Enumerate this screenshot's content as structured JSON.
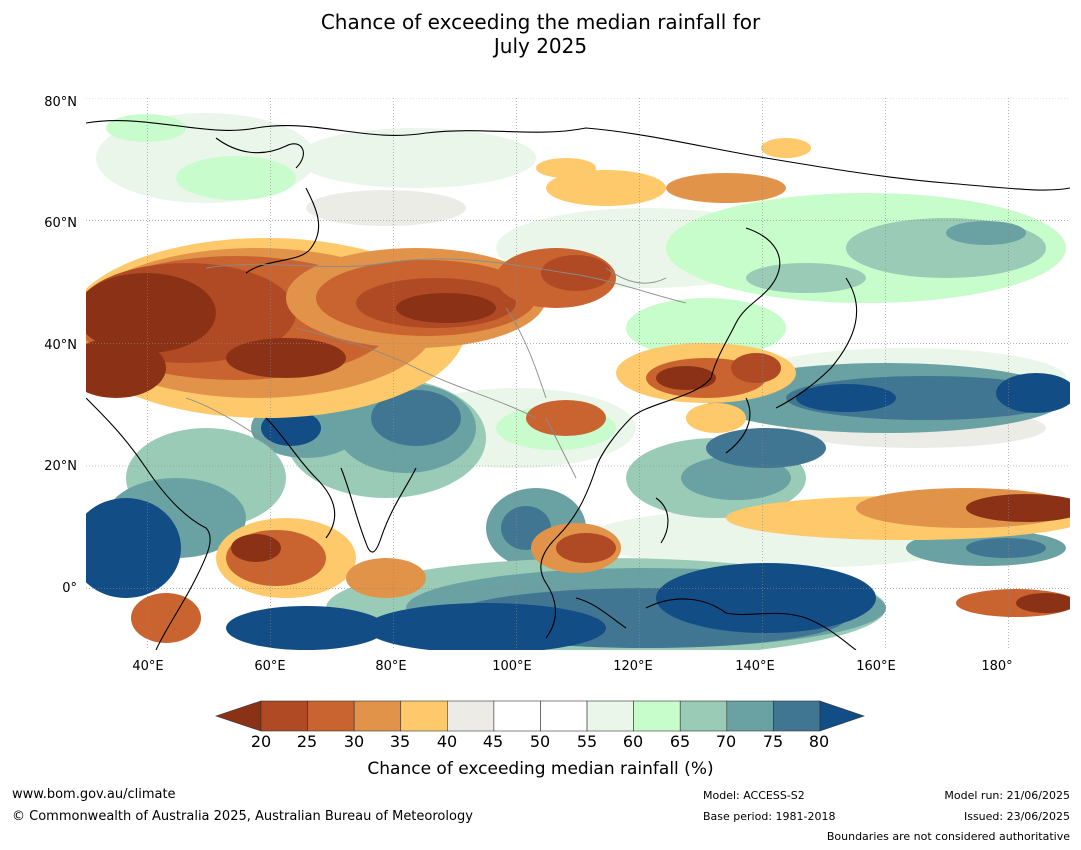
{
  "title": {
    "line1": "Chance of exceeding the median rainfall for",
    "line2": "July 2025"
  },
  "map": {
    "lat_labels": [
      "80°N",
      "60°N",
      "40°N",
      "20°N",
      "0°"
    ],
    "lon_labels": [
      "40°E",
      "60°E",
      "80°E",
      "100°E",
      "120°E",
      "140°E",
      "160°E",
      "180°"
    ],
    "lon_range": [
      30,
      190
    ],
    "lat_range": [
      -10,
      80
    ]
  },
  "colorbar": {
    "ticks": [
      "20",
      "25",
      "30",
      "35",
      "40",
      "45",
      "50",
      "55",
      "60",
      "65",
      "70",
      "75",
      "80"
    ],
    "colors": [
      "#8b3216",
      "#b04a24",
      "#c96430",
      "#e2934a",
      "#fdc96a",
      "#ecebe6",
      "#ffffff",
      "#ffffff",
      "#e9f6e9",
      "#c7fccb",
      "#99cbb6",
      "#6aa2a4",
      "#417693",
      "#134d86"
    ],
    "label": "Chance of exceeding median rainfall (%)"
  },
  "footer": {
    "url": "www.bom.gov.au/climate",
    "copyright": "© Commonwealth of Australia 2025, Australian Bureau of Meteorology",
    "model": "Model: ACCESS-S2",
    "base_period": "Base period: 1981-2018",
    "model_run": "Model run: 21/06/2025",
    "issued": "Issued: 23/06/2025",
    "disclaimer": "Boundaries are not considered authoritative"
  }
}
